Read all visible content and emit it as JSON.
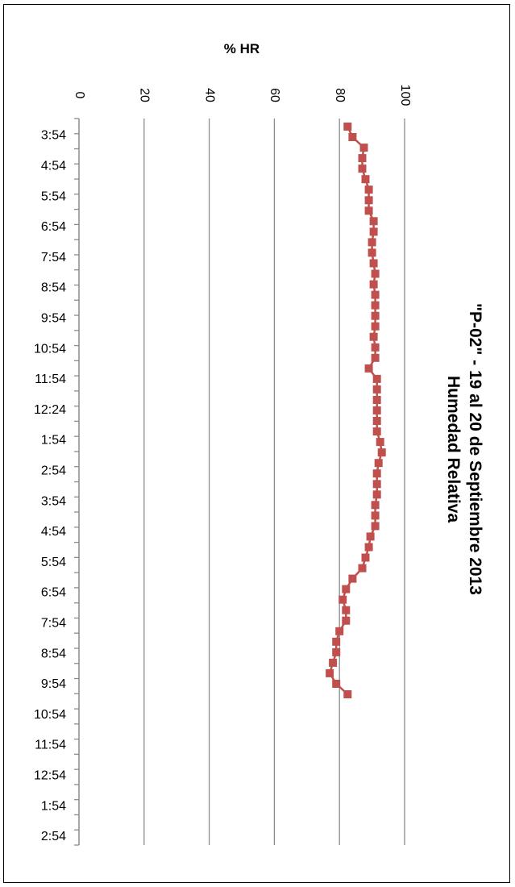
{
  "chart_data": {
    "type": "line",
    "title": "\"P-02\" - 19 al 20 de Septiembre 2013",
    "subtitle": "Humedad Relativa",
    "ylabel": "% HR",
    "xlabel": "",
    "ylim": [
      0,
      100
    ],
    "y_ticks": [
      "0",
      "20",
      "40",
      "60",
      "80",
      "100"
    ],
    "grid": true,
    "x_tick_labels": [
      "3:54",
      "4:54",
      "5:54",
      "6:54",
      "7:54",
      "8:54",
      "9:54",
      "10:54",
      "11:54",
      "12:24",
      "1:54",
      "2:54",
      "3:54",
      "4:54",
      "5:54",
      "6:54",
      "7:54",
      "8:54",
      "9:54",
      "10:54",
      "11:54",
      "12:54",
      "1:54",
      "2:54"
    ],
    "series": [
      {
        "color": "#c0504d",
        "values": [
          82.5,
          84,
          87.5,
          87,
          87,
          88,
          89,
          89,
          89,
          90.5,
          90.5,
          90,
          90,
          90.5,
          91,
          90.5,
          91,
          91,
          91,
          91,
          90.5,
          91,
          91,
          89,
          91.5,
          91.5,
          91.5,
          91.5,
          91.5,
          91.5,
          92.5,
          93,
          92,
          91.5,
          91.5,
          91.5,
          91,
          91,
          91,
          89.5,
          89,
          88,
          87,
          84,
          82,
          81,
          82,
          82,
          80,
          79,
          79,
          78,
          77,
          79,
          82.5
        ]
      }
    ]
  }
}
